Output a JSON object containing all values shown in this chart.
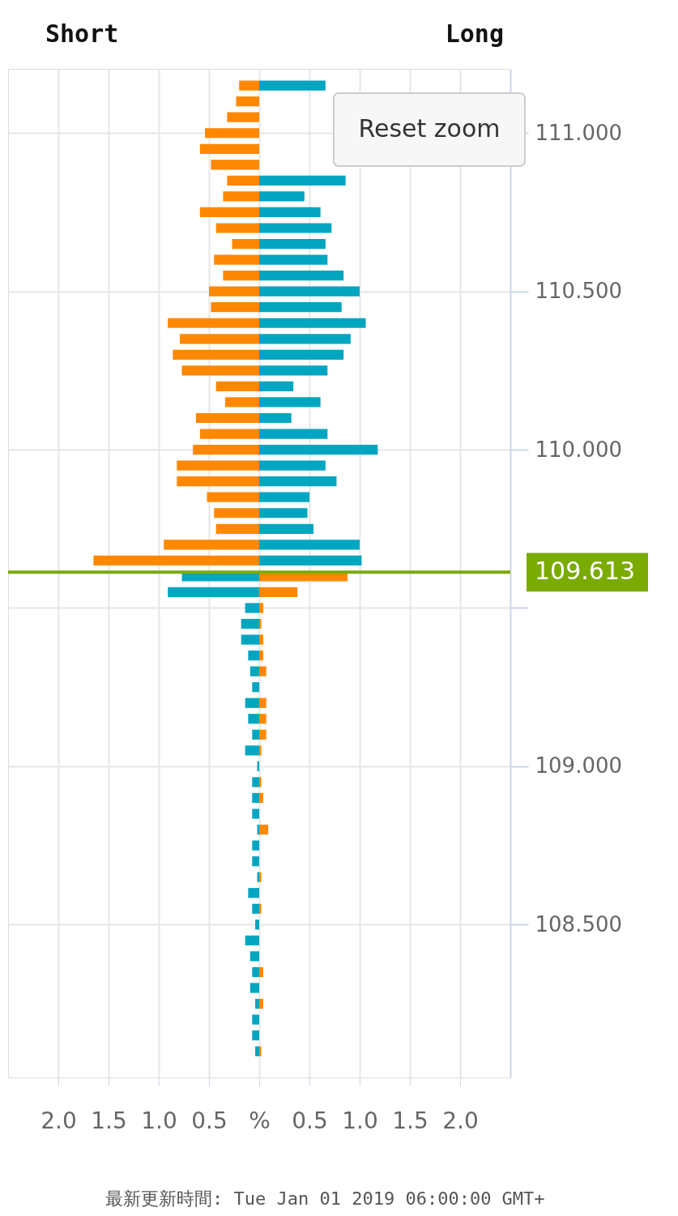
{
  "chart_data": {
    "type": "bar",
    "orientation": "horizontal",
    "annotations": [
      "Short",
      "Long",
      "Reset zoom",
      "最新更新時間: Tue Jan 01 2019 06:00:00 GMT+"
    ],
    "x": [
      111.15,
      111.1,
      111.05,
      111.0,
      110.95,
      110.9,
      110.85,
      110.8,
      110.75,
      110.7,
      110.65,
      110.6,
      110.55,
      110.5,
      110.45,
      110.4,
      110.35,
      110.3,
      110.25,
      110.2,
      110.15,
      110.1,
      110.05,
      110.0,
      109.95,
      109.9,
      109.85,
      109.8,
      109.75,
      109.7,
      109.65,
      109.6,
      109.55,
      109.5,
      109.45,
      109.4,
      109.35,
      109.3,
      109.25,
      109.2,
      109.15,
      109.1,
      109.05,
      109.0,
      108.95,
      108.9,
      108.85,
      108.8,
      108.75,
      108.7,
      108.65,
      108.6,
      108.55,
      108.5,
      108.45,
      108.4,
      108.35,
      108.3,
      108.25,
      108.2,
      108.15,
      108.1
    ],
    "series": [
      {
        "color": "#ff8800",
        "values": [
          -0.2,
          -0.23,
          -0.32,
          -0.54,
          -0.59,
          -0.48,
          -0.32,
          -0.36,
          -0.59,
          -0.43,
          -0.27,
          -0.45,
          -0.36,
          -0.5,
          -0.48,
          -0.91,
          -0.79,
          -0.86,
          -0.77,
          -0.43,
          -0.34,
          -0.63,
          -0.59,
          -0.66,
          -0.82,
          -0.82,
          -0.52,
          -0.45,
          -0.43,
          -0.95,
          -1.65,
          0.88,
          0.38,
          0.04,
          0.02,
          0.04,
          0.04,
          0.07,
          null,
          0.07,
          0.07,
          0.07,
          0.02,
          null,
          0.02,
          0.04,
          null,
          0.09,
          null,
          null,
          0.02,
          null,
          0.02,
          null,
          null,
          null,
          0.04,
          null,
          0.04,
          null,
          null,
          0.02
        ]
      },
      {
        "color": "#00a5c0",
        "values": [
          0.66,
          null,
          null,
          null,
          null,
          null,
          0.86,
          0.45,
          0.61,
          0.72,
          0.66,
          0.68,
          0.84,
          1.0,
          0.82,
          1.06,
          0.91,
          0.84,
          0.68,
          0.34,
          0.61,
          0.32,
          0.68,
          1.18,
          0.66,
          0.77,
          0.5,
          0.48,
          0.54,
          1.0,
          1.02,
          -0.77,
          -0.91,
          -0.14,
          -0.18,
          -0.18,
          -0.11,
          -0.09,
          -0.07,
          -0.14,
          -0.11,
          -0.07,
          -0.14,
          -0.02,
          -0.07,
          -0.07,
          -0.07,
          -0.02,
          -0.07,
          -0.07,
          -0.02,
          -0.11,
          -0.07,
          -0.04,
          -0.14,
          -0.09,
          -0.07,
          -0.09,
          -0.04,
          -0.07,
          -0.07,
          -0.04
        ]
      }
    ],
    "xlim": [
      -2.5,
      2.5
    ],
    "xticks": [
      {
        "value": -2,
        "label": "2.0"
      },
      {
        "value": -1.5,
        "label": "1.5"
      },
      {
        "value": -1,
        "label": "1.0"
      },
      {
        "value": -0.5,
        "label": "0.5"
      },
      {
        "value": 0,
        "label": "%"
      },
      {
        "value": 0.5,
        "label": "0.5"
      },
      {
        "value": 1,
        "label": "1.0"
      },
      {
        "value": 1.5,
        "label": "1.5"
      },
      {
        "value": 2,
        "label": "2.0"
      }
    ],
    "ylim": [
      108.03,
      111.19
    ],
    "yticks": [
      {
        "value": 108.5,
        "label": "108.500"
      },
      {
        "value": 109,
        "label": "109.000"
      },
      {
        "value": 109.5,
        "label": null
      },
      {
        "value": 110,
        "label": "110.000"
      },
      {
        "value": 110.5,
        "label": "110.500"
      },
      {
        "value": 111,
        "label": "111.000"
      }
    ],
    "ref_lines": [
      {
        "axis": "y",
        "value": 109.613,
        "label": "109.613",
        "color": "#7aab00"
      }
    ],
    "stacked": true,
    "grid": true
  }
}
